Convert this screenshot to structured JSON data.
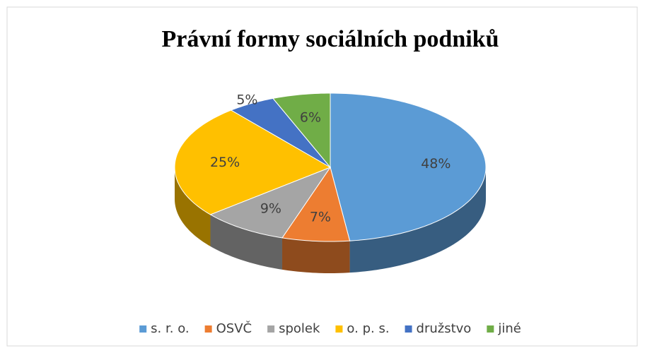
{
  "chart_data": {
    "type": "pie3d",
    "title": "Právní formy sociálních podniků",
    "categories": [
      "s. r. o.",
      "OSVČ",
      "spolek",
      "o. p. s.",
      "družstvo",
      "jiné"
    ],
    "values": [
      48,
      7,
      9,
      25,
      5,
      6
    ],
    "value_labels": [
      "48%",
      "7%",
      "9%",
      "25%",
      "5%",
      "6%"
    ],
    "colors": [
      "#5b9bd5",
      "#ed7d31",
      "#a5a5a5",
      "#ffc000",
      "#4472c4",
      "#70ad47"
    ],
    "legend": "bottom"
  }
}
